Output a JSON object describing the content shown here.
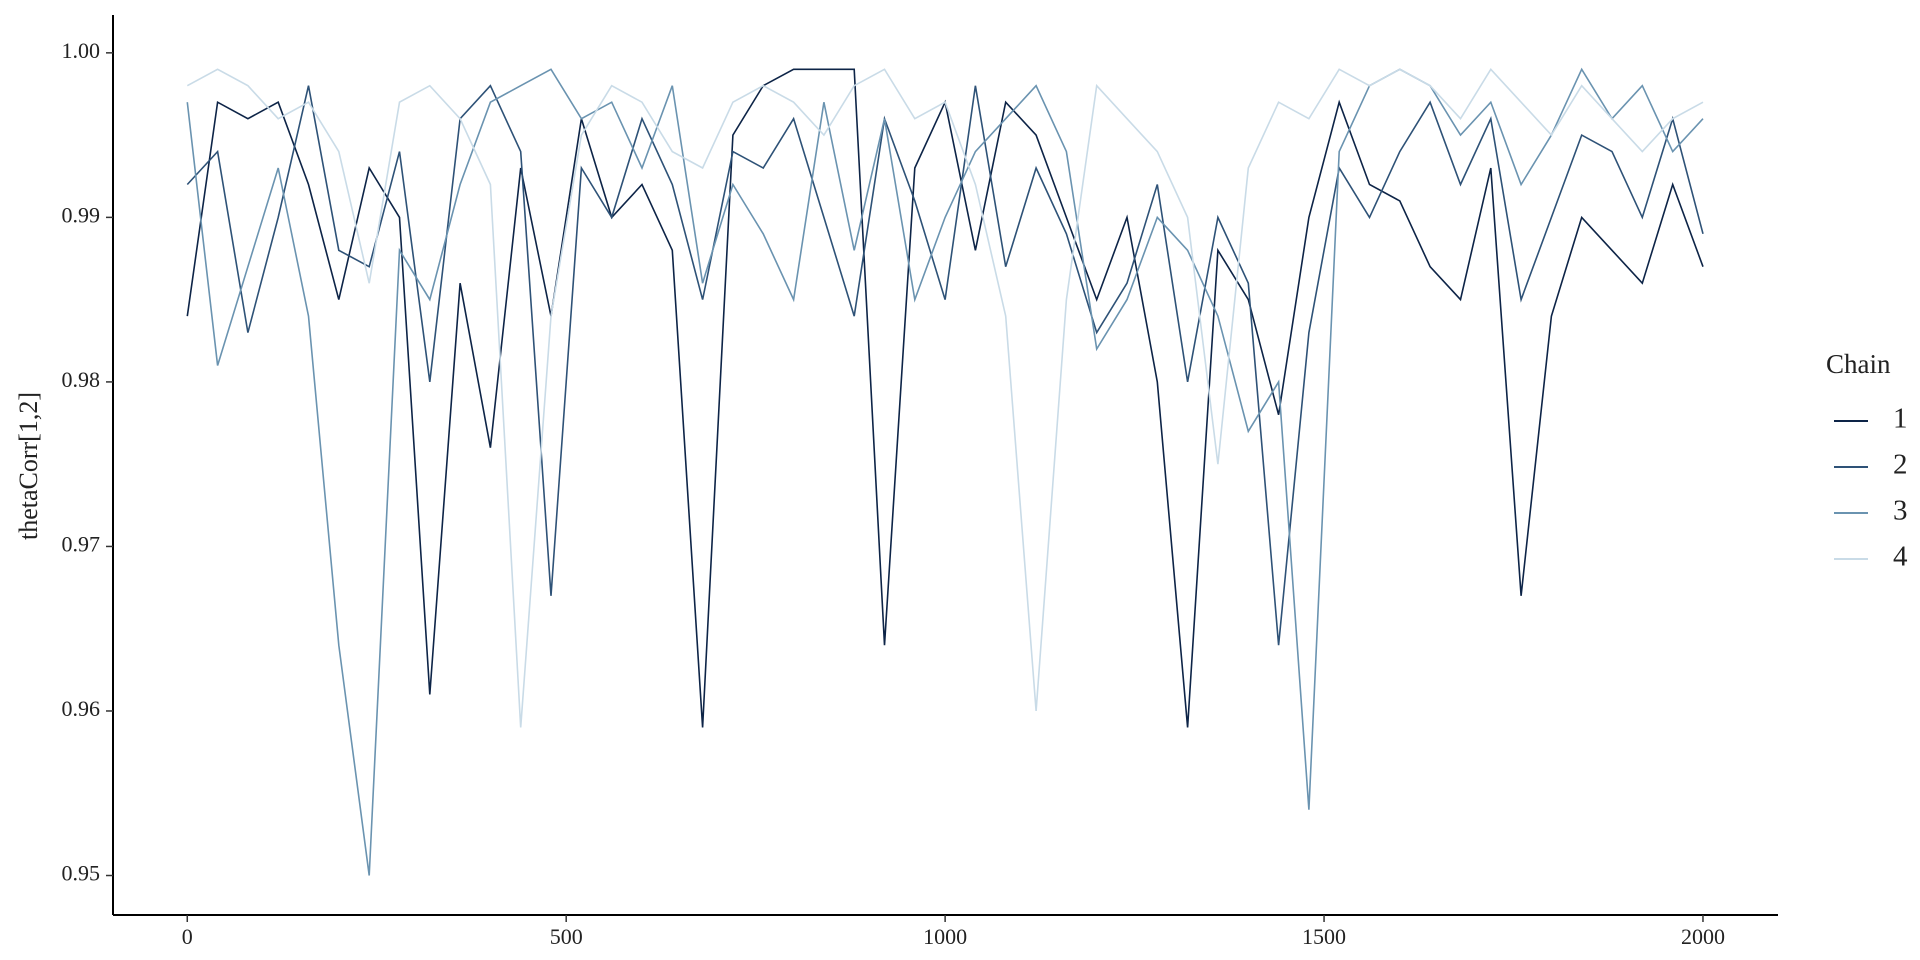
{
  "chart_data": {
    "type": "line",
    "y_label": "thetaCorr[1,2]",
    "legend_title": "Chain",
    "legend": "right",
    "grid": false,
    "x": [
      0,
      40,
      80,
      120,
      160,
      200,
      240,
      280,
      320,
      360,
      400,
      440,
      480,
      520,
      560,
      600,
      640,
      680,
      720,
      760,
      800,
      840,
      880,
      920,
      960,
      1000,
      1040,
      1080,
      1120,
      1160,
      1200,
      1240,
      1280,
      1320,
      1360,
      1400,
      1440,
      1480,
      1520,
      1560,
      1600,
      1640,
      1680,
      1720,
      1760,
      1800,
      1840,
      1880,
      1920,
      1960,
      2000
    ],
    "series": [
      {
        "name": "1",
        "color": "#0d2447",
        "values": [
          0.984,
          0.997,
          0.996,
          0.997,
          0.992,
          0.985,
          0.993,
          0.99,
          0.961,
          0.986,
          0.976,
          0.993,
          0.984,
          0.996,
          0.99,
          0.992,
          0.988,
          0.959,
          0.995,
          0.998,
          0.999,
          0.999,
          0.999,
          0.964,
          0.993,
          0.997,
          0.988,
          0.997,
          0.995,
          0.99,
          0.985,
          0.99,
          0.98,
          0.959,
          0.988,
          0.985,
          0.978,
          0.99,
          0.997,
          0.992,
          0.991,
          0.987,
          0.985,
          0.993,
          0.967,
          0.984,
          0.99,
          0.988,
          0.986,
          0.992,
          0.987
        ]
      },
      {
        "name": "2",
        "color": "#2e5277",
        "values": [
          0.992,
          0.994,
          0.983,
          0.99,
          0.998,
          0.988,
          0.987,
          0.994,
          0.98,
          0.996,
          0.998,
          0.994,
          0.967,
          0.993,
          0.99,
          0.996,
          0.992,
          0.985,
          0.994,
          0.993,
          0.996,
          0.99,
          0.984,
          0.996,
          0.991,
          0.985,
          0.998,
          0.987,
          0.993,
          0.989,
          0.983,
          0.986,
          0.992,
          0.98,
          0.99,
          0.986,
          0.964,
          0.983,
          0.993,
          0.99,
          0.994,
          0.997,
          0.992,
          0.996,
          0.985,
          0.99,
          0.995,
          0.994,
          0.99,
          0.996,
          0.989
        ]
      },
      {
        "name": "3",
        "color": "#6a93b0",
        "values": [
          0.997,
          0.981,
          0.987,
          0.993,
          0.984,
          0.964,
          0.95,
          0.988,
          0.985,
          0.992,
          0.997,
          0.998,
          0.999,
          0.996,
          0.997,
          0.993,
          0.998,
          0.986,
          0.992,
          0.989,
          0.985,
          0.997,
          0.988,
          0.996,
          0.985,
          0.99,
          0.994,
          0.996,
          0.998,
          0.994,
          0.982,
          0.985,
          0.99,
          0.988,
          0.984,
          0.977,
          0.98,
          0.954,
          0.994,
          0.998,
          0.999,
          0.998,
          0.995,
          0.997,
          0.992,
          0.995,
          0.999,
          0.996,
          0.998,
          0.994,
          0.996
        ]
      },
      {
        "name": "4",
        "color": "#c9dbe7",
        "values": [
          0.998,
          0.999,
          0.998,
          0.996,
          0.997,
          0.994,
          0.986,
          0.997,
          0.998,
          0.996,
          0.992,
          0.959,
          0.984,
          0.995,
          0.998,
          0.997,
          0.994,
          0.993,
          0.997,
          0.998,
          0.997,
          0.995,
          0.998,
          0.999,
          0.996,
          0.997,
          0.992,
          0.984,
          0.96,
          0.985,
          0.998,
          0.996,
          0.994,
          0.99,
          0.975,
          0.993,
          0.997,
          0.996,
          0.999,
          0.998,
          0.999,
          0.998,
          0.996,
          0.999,
          0.997,
          0.995,
          0.998,
          0.996,
          0.994,
          0.996,
          0.997
        ]
      }
    ],
    "xlim": [
      -98,
      2099
    ],
    "ylim": [
      0.9476,
      1.0023
    ],
    "xticks": [
      0,
      500,
      1000,
      1500,
      2000
    ],
    "yticks": [
      0.95,
      0.96,
      0.97,
      0.98,
      0.99,
      {
        "value": 1,
        "label": "1.00"
      }
    ]
  }
}
